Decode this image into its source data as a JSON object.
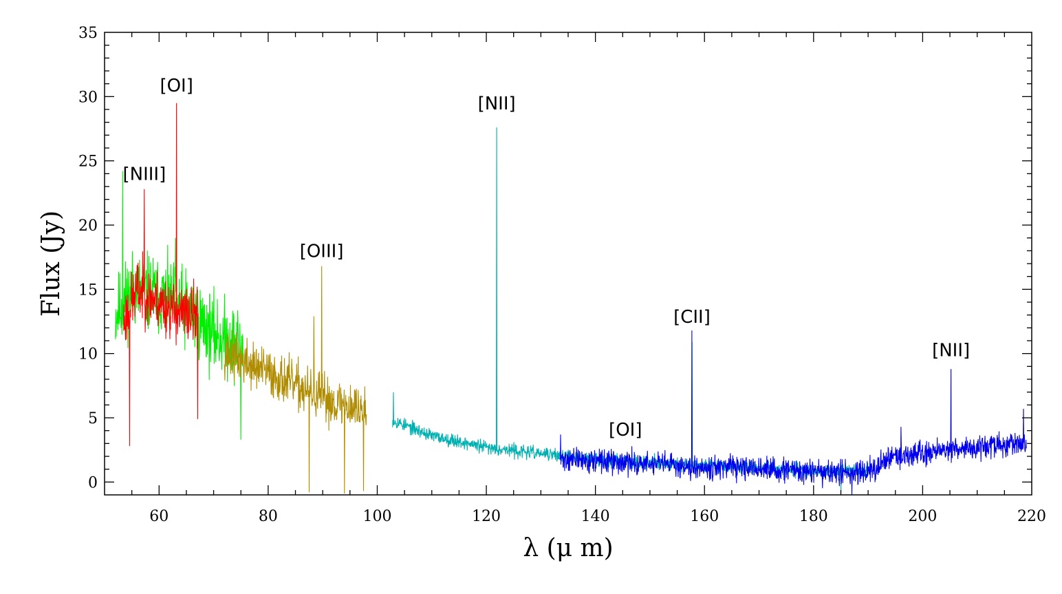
{
  "chart_data": {
    "type": "line",
    "title": "",
    "xlabel": "λ  (μ m)",
    "ylabel": "Flux (Jy)",
    "xlim": [
      50,
      220
    ],
    "ylim": [
      -1,
      35
    ],
    "xticks": [
      60,
      80,
      100,
      120,
      140,
      160,
      180,
      200,
      220
    ],
    "yticks": [
      0,
      5,
      10,
      15,
      20,
      25,
      30,
      35
    ],
    "grid": false,
    "series": [
      {
        "name": "green",
        "color": "#00ee00",
        "range": [
          52.0,
          75.5
        ],
        "noise": 2.6,
        "seed": 11,
        "profile": [
          [
            52,
            13
          ],
          [
            55,
            15
          ],
          [
            60,
            14.5
          ],
          [
            65,
            13.5
          ],
          [
            70,
            11.5
          ],
          [
            75.5,
            10.5
          ]
        ],
        "peaks": [
          [
            53.3,
            24.2
          ],
          [
            63.0,
            19.0
          ],
          [
            75.0,
            3.3
          ]
        ]
      },
      {
        "name": "red",
        "color": "#ff0000",
        "range": [
          53.5,
          67.2
        ],
        "noise": 2.0,
        "seed": 23,
        "profile": [
          [
            53.5,
            12.5
          ],
          [
            56,
            15
          ],
          [
            60,
            14
          ],
          [
            64,
            13
          ],
          [
            67.2,
            13
          ]
        ],
        "peaks": [
          [
            57.3,
            22.8
          ],
          [
            63.2,
            29.5
          ],
          [
            54.6,
            2.8
          ],
          [
            67.1,
            4.9
          ]
        ]
      },
      {
        "name": "olive",
        "color": "#b08c00",
        "range": [
          72.0,
          98.0
        ],
        "noise": 1.6,
        "seed": 37,
        "profile": [
          [
            72,
            10
          ],
          [
            80,
            8.5
          ],
          [
            90,
            6.5
          ],
          [
            98,
            5.5
          ]
        ],
        "peaks": [
          [
            88.4,
            12.9
          ],
          [
            89.8,
            16.8
          ],
          [
            87.5,
            -0.8
          ],
          [
            94.0,
            -0.9
          ],
          [
            97.5,
            -0.7
          ]
        ]
      },
      {
        "name": "teal",
        "color": "#00b0b0",
        "range": [
          102.8,
          190.0
        ],
        "noise": 0.45,
        "seed": 53,
        "profile": [
          [
            102.8,
            4.8
          ],
          [
            110,
            3.6
          ],
          [
            120,
            2.7
          ],
          [
            130,
            2.2
          ],
          [
            140,
            1.8
          ],
          [
            160,
            1.3
          ],
          [
            180,
            0.9
          ],
          [
            190,
            1.0
          ]
        ],
        "peaks": [
          [
            121.9,
            27.6
          ],
          [
            157.7,
            10.9
          ],
          [
            103.0,
            7.0
          ],
          [
            185.0,
            -0.9
          ]
        ]
      },
      {
        "name": "blue",
        "color": "#0000ee",
        "range": [
          133.5,
          219.0
        ],
        "noise": 0.8,
        "seed": 71,
        "profile": [
          [
            133.5,
            1.8
          ],
          [
            150,
            1.4
          ],
          [
            170,
            1.0
          ],
          [
            185,
            0.7
          ],
          [
            190,
            0.9
          ],
          [
            195,
            2.0
          ],
          [
            205,
            2.6
          ],
          [
            219,
            3.0
          ]
        ],
        "peaks": [
          [
            205.2,
            8.8
          ],
          [
            157.7,
            11.8
          ],
          [
            133.6,
            3.7
          ],
          [
            218.5,
            5.7
          ],
          [
            196.0,
            4.3
          ],
          [
            187.0,
            -1.0
          ]
        ]
      }
    ],
    "annotations": [
      {
        "text": "[OI]",
        "x": 63.2,
        "y": 30.4
      },
      {
        "text": "[NIII]",
        "x": 57.3,
        "y": 23.5
      },
      {
        "text": "[NII]",
        "x": 121.9,
        "y": 29.0
      },
      {
        "text": "[OIII]",
        "x": 89.8,
        "y": 17.5
      },
      {
        "text": "[CII]",
        "x": 157.7,
        "y": 12.4
      },
      {
        "text": "[OI]",
        "x": 145.5,
        "y": 3.6
      },
      {
        "text": "[NII]",
        "x": 205.2,
        "y": 9.8
      }
    ]
  }
}
